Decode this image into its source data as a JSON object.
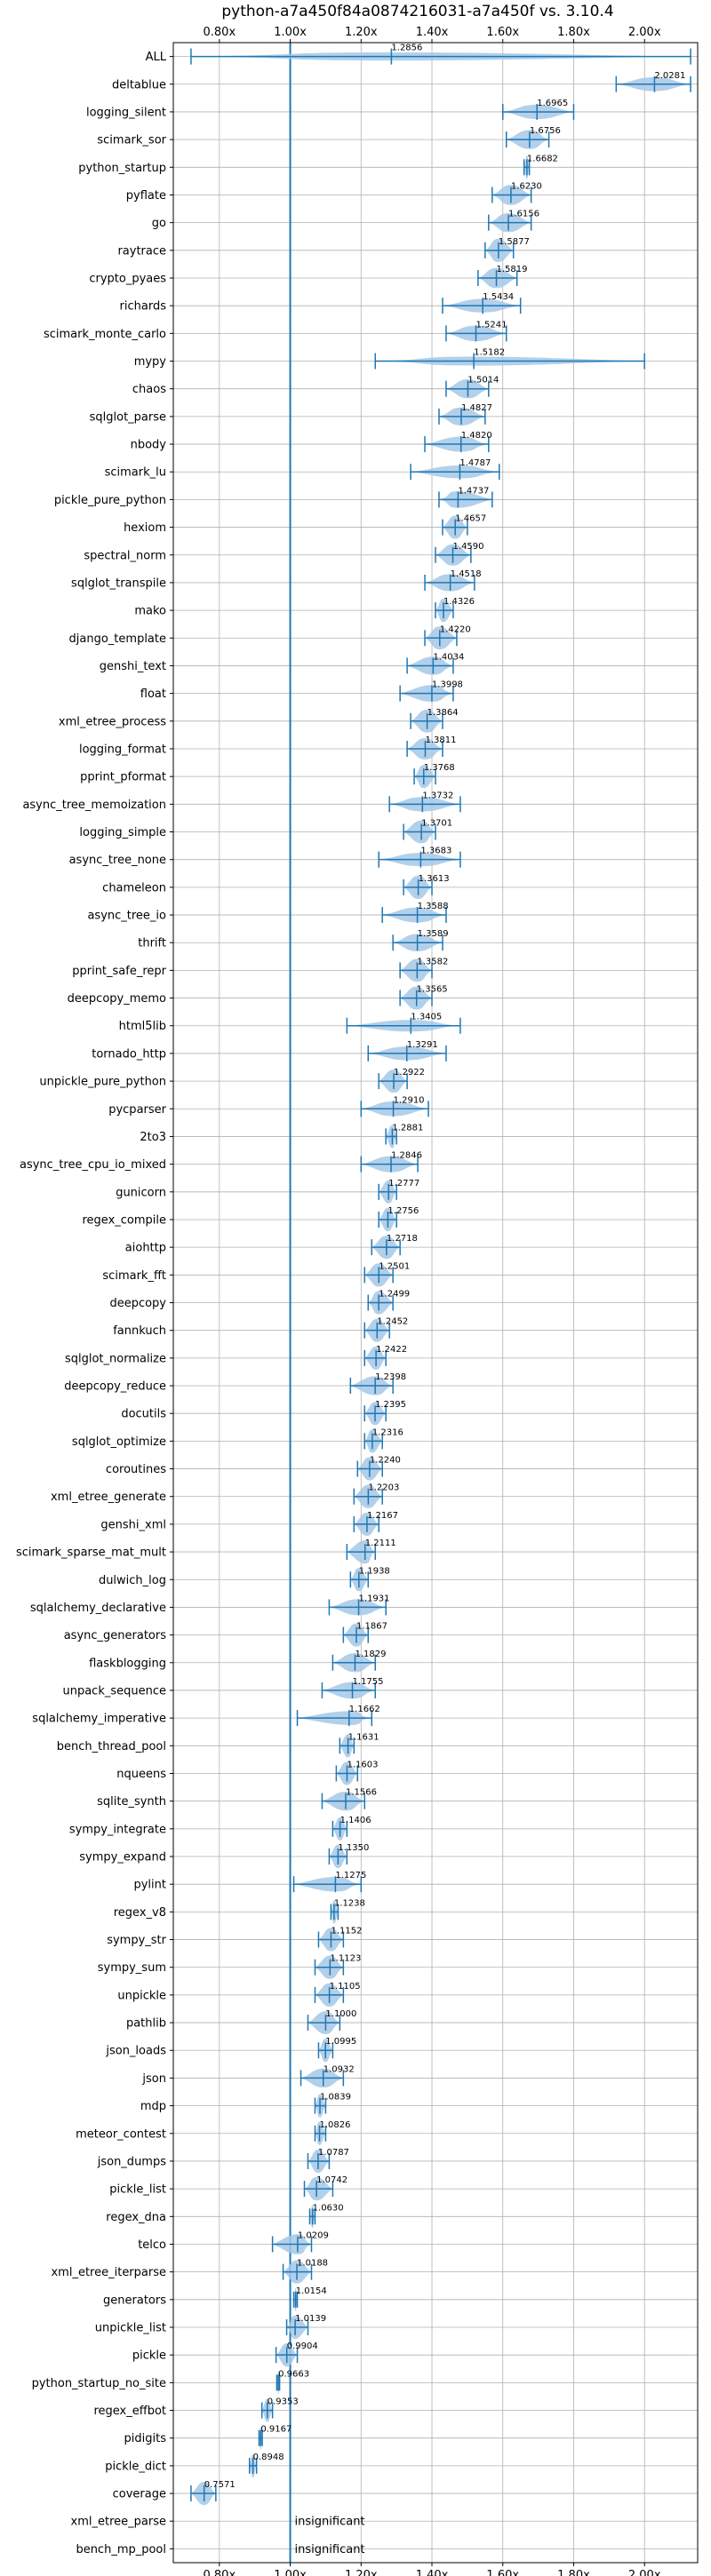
{
  "chart_data": {
    "type": "violin",
    "title": "python-a7a450f84a0874216031-a7a450f vs. 3.10.4",
    "xticks": [
      "0.80x",
      "1.00x",
      "1.20x",
      "1.40x",
      "1.60x",
      "1.80x",
      "2.00x"
    ],
    "xtick_values": [
      0.8,
      1.0,
      1.2,
      1.4,
      1.6,
      1.8,
      2.0
    ],
    "xlim": [
      0.67,
      2.15
    ],
    "reference_line": 1.0,
    "grid": true,
    "color": "#1f77b4",
    "fill_color": "#a6c8e6",
    "benchmarks": [
      {
        "name": "ALL",
        "value": 1.2856,
        "label": "1.2856",
        "min": 0.72,
        "max": 2.13
      },
      {
        "name": "deltablue",
        "value": 2.0281,
        "label": "2.0281",
        "min": 1.92,
        "max": 2.13
      },
      {
        "name": "logging_silent",
        "value": 1.6965,
        "label": "1.6965",
        "min": 1.6,
        "max": 1.8
      },
      {
        "name": "scimark_sor",
        "value": 1.6756,
        "label": "1.6756",
        "min": 1.61,
        "max": 1.73
      },
      {
        "name": "python_startup",
        "value": 1.6682,
        "label": "1.6682",
        "min": 1.66,
        "max": 1.675
      },
      {
        "name": "pyflate",
        "value": 1.623,
        "label": "1.6230",
        "min": 1.57,
        "max": 1.68
      },
      {
        "name": "go",
        "value": 1.6156,
        "label": "1.6156",
        "min": 1.56,
        "max": 1.68
      },
      {
        "name": "raytrace",
        "value": 1.5877,
        "label": "1.5877",
        "min": 1.55,
        "max": 1.63
      },
      {
        "name": "crypto_pyaes",
        "value": 1.5819,
        "label": "1.5819",
        "min": 1.53,
        "max": 1.64
      },
      {
        "name": "richards",
        "value": 1.5434,
        "label": "1.5434",
        "min": 1.43,
        "max": 1.65
      },
      {
        "name": "scimark_monte_carlo",
        "value": 1.5241,
        "label": "1.5241",
        "min": 1.44,
        "max": 1.61
      },
      {
        "name": "mypy",
        "value": 1.5182,
        "label": "1.5182",
        "min": 1.24,
        "max": 2.0
      },
      {
        "name": "chaos",
        "value": 1.5014,
        "label": "1.5014",
        "min": 1.44,
        "max": 1.56
      },
      {
        "name": "sqlglot_parse",
        "value": 1.4827,
        "label": "1.4827",
        "min": 1.42,
        "max": 1.55
      },
      {
        "name": "nbody",
        "value": 1.482,
        "label": "1.4820",
        "min": 1.38,
        "max": 1.56
      },
      {
        "name": "scimark_lu",
        "value": 1.4787,
        "label": "1.4787",
        "min": 1.34,
        "max": 1.59
      },
      {
        "name": "pickle_pure_python",
        "value": 1.4737,
        "label": "1.4737",
        "min": 1.42,
        "max": 1.57
      },
      {
        "name": "hexiom",
        "value": 1.4657,
        "label": "1.4657",
        "min": 1.43,
        "max": 1.5
      },
      {
        "name": "spectral_norm",
        "value": 1.459,
        "label": "1.4590",
        "min": 1.41,
        "max": 1.51
      },
      {
        "name": "sqlglot_transpile",
        "value": 1.4518,
        "label": "1.4518",
        "min": 1.38,
        "max": 1.52
      },
      {
        "name": "mako",
        "value": 1.4326,
        "label": "1.4326",
        "min": 1.41,
        "max": 1.46
      },
      {
        "name": "django_template",
        "value": 1.422,
        "label": "1.4220",
        "min": 1.38,
        "max": 1.47
      },
      {
        "name": "genshi_text",
        "value": 1.4034,
        "label": "1.4034",
        "min": 1.33,
        "max": 1.46
      },
      {
        "name": "float",
        "value": 1.3998,
        "label": "1.3998",
        "min": 1.31,
        "max": 1.46
      },
      {
        "name": "xml_etree_process",
        "value": 1.3864,
        "label": "1.3864",
        "min": 1.34,
        "max": 1.43
      },
      {
        "name": "logging_format",
        "value": 1.3811,
        "label": "1.3811",
        "min": 1.33,
        "max": 1.43
      },
      {
        "name": "pprint_pformat",
        "value": 1.3768,
        "label": "1.3768",
        "min": 1.35,
        "max": 1.41
      },
      {
        "name": "async_tree_memoization",
        "value": 1.3732,
        "label": "1.3732",
        "min": 1.28,
        "max": 1.48
      },
      {
        "name": "logging_simple",
        "value": 1.3701,
        "label": "1.3701",
        "min": 1.32,
        "max": 1.41
      },
      {
        "name": "async_tree_none",
        "value": 1.3683,
        "label": "1.3683",
        "min": 1.25,
        "max": 1.48
      },
      {
        "name": "chameleon",
        "value": 1.3613,
        "label": "1.3613",
        "min": 1.32,
        "max": 1.4
      },
      {
        "name": "async_tree_io",
        "value": 1.3588,
        "label": "1.3588",
        "min": 1.26,
        "max": 1.44
      },
      {
        "name": "thrift",
        "value": 1.3589,
        "label": "1.3589",
        "min": 1.29,
        "max": 1.43
      },
      {
        "name": "pprint_safe_repr",
        "value": 1.3582,
        "label": "1.3582",
        "min": 1.31,
        "max": 1.4
      },
      {
        "name": "deepcopy_memo",
        "value": 1.3565,
        "label": "1.3565",
        "min": 1.31,
        "max": 1.4
      },
      {
        "name": "html5lib",
        "value": 1.3405,
        "label": "1.3405",
        "min": 1.16,
        "max": 1.48
      },
      {
        "name": "tornado_http",
        "value": 1.3291,
        "label": "1.3291",
        "min": 1.22,
        "max": 1.44
      },
      {
        "name": "unpickle_pure_python",
        "value": 1.2922,
        "label": "1.2922",
        "min": 1.25,
        "max": 1.33
      },
      {
        "name": "pycparser",
        "value": 1.291,
        "label": "1.2910",
        "min": 1.2,
        "max": 1.39
      },
      {
        "name": "2to3",
        "value": 1.2881,
        "label": "1.2881",
        "min": 1.27,
        "max": 1.3
      },
      {
        "name": "async_tree_cpu_io_mixed",
        "value": 1.2846,
        "label": "1.2846",
        "min": 1.2,
        "max": 1.36
      },
      {
        "name": "gunicorn",
        "value": 1.2777,
        "label": "1.2777",
        "min": 1.25,
        "max": 1.3
      },
      {
        "name": "regex_compile",
        "value": 1.2756,
        "label": "1.2756",
        "min": 1.25,
        "max": 1.3
      },
      {
        "name": "aiohttp",
        "value": 1.2718,
        "label": "1.2718",
        "min": 1.23,
        "max": 1.31
      },
      {
        "name": "scimark_fft",
        "value": 1.2501,
        "label": "1.2501",
        "min": 1.21,
        "max": 1.29
      },
      {
        "name": "deepcopy",
        "value": 1.2499,
        "label": "1.2499",
        "min": 1.22,
        "max": 1.29
      },
      {
        "name": "fannkuch",
        "value": 1.2452,
        "label": "1.2452",
        "min": 1.21,
        "max": 1.28
      },
      {
        "name": "sqlglot_normalize",
        "value": 1.2422,
        "label": "1.2422",
        "min": 1.21,
        "max": 1.27
      },
      {
        "name": "deepcopy_reduce",
        "value": 1.2398,
        "label": "1.2398",
        "min": 1.17,
        "max": 1.29
      },
      {
        "name": "docutils",
        "value": 1.2395,
        "label": "1.2395",
        "min": 1.21,
        "max": 1.27
      },
      {
        "name": "sqlglot_optimize",
        "value": 1.2316,
        "label": "1.2316",
        "min": 1.21,
        "max": 1.26
      },
      {
        "name": "coroutines",
        "value": 1.224,
        "label": "1.2240",
        "min": 1.19,
        "max": 1.26
      },
      {
        "name": "xml_etree_generate",
        "value": 1.2203,
        "label": "1.2203",
        "min": 1.18,
        "max": 1.26
      },
      {
        "name": "genshi_xml",
        "value": 1.2167,
        "label": "1.2167",
        "min": 1.18,
        "max": 1.25
      },
      {
        "name": "scimark_sparse_mat_mult",
        "value": 1.2111,
        "label": "1.2111",
        "min": 1.16,
        "max": 1.24
      },
      {
        "name": "dulwich_log",
        "value": 1.1938,
        "label": "1.1938",
        "min": 1.17,
        "max": 1.22
      },
      {
        "name": "sqlalchemy_declarative",
        "value": 1.1931,
        "label": "1.1931",
        "min": 1.11,
        "max": 1.27
      },
      {
        "name": "async_generators",
        "value": 1.1867,
        "label": "1.1867",
        "min": 1.15,
        "max": 1.22
      },
      {
        "name": "flaskblogging",
        "value": 1.1829,
        "label": "1.1829",
        "min": 1.12,
        "max": 1.24
      },
      {
        "name": "unpack_sequence",
        "value": 1.1755,
        "label": "1.1755",
        "min": 1.09,
        "max": 1.24
      },
      {
        "name": "sqlalchemy_imperative",
        "value": 1.1662,
        "label": "1.1662",
        "min": 1.02,
        "max": 1.23
      },
      {
        "name": "bench_thread_pool",
        "value": 1.1631,
        "label": "1.1631",
        "min": 1.14,
        "max": 1.18
      },
      {
        "name": "nqueens",
        "value": 1.1603,
        "label": "1.1603",
        "min": 1.13,
        "max": 1.19
      },
      {
        "name": "sqlite_synth",
        "value": 1.1566,
        "label": "1.1566",
        "min": 1.09,
        "max": 1.21
      },
      {
        "name": "sympy_integrate",
        "value": 1.1406,
        "label": "1.1406",
        "min": 1.12,
        "max": 1.16
      },
      {
        "name": "sympy_expand",
        "value": 1.135,
        "label": "1.1350",
        "min": 1.11,
        "max": 1.16
      },
      {
        "name": "pylint",
        "value": 1.1275,
        "label": "1.1275",
        "min": 1.01,
        "max": 1.2
      },
      {
        "name": "regex_v8",
        "value": 1.1238,
        "label": "1.1238",
        "min": 1.115,
        "max": 1.135
      },
      {
        "name": "sympy_str",
        "value": 1.1152,
        "label": "1.1152",
        "min": 1.08,
        "max": 1.15
      },
      {
        "name": "sympy_sum",
        "value": 1.1123,
        "label": "1.1123",
        "min": 1.07,
        "max": 1.15
      },
      {
        "name": "unpickle",
        "value": 1.1105,
        "label": "1.1105",
        "min": 1.07,
        "max": 1.15
      },
      {
        "name": "pathlib",
        "value": 1.1,
        "label": "1.1000",
        "min": 1.05,
        "max": 1.14
      },
      {
        "name": "json_loads",
        "value": 1.0995,
        "label": "1.0995",
        "min": 1.08,
        "max": 1.12
      },
      {
        "name": "json",
        "value": 1.0932,
        "label": "1.0932",
        "min": 1.03,
        "max": 1.15
      },
      {
        "name": "mdp",
        "value": 1.0839,
        "label": "1.0839",
        "min": 1.07,
        "max": 1.1
      },
      {
        "name": "meteor_contest",
        "value": 1.0826,
        "label": "1.0826",
        "min": 1.07,
        "max": 1.1
      },
      {
        "name": "json_dumps",
        "value": 1.0787,
        "label": "1.0787",
        "min": 1.05,
        "max": 1.11
      },
      {
        "name": "pickle_list",
        "value": 1.0742,
        "label": "1.0742",
        "min": 1.04,
        "max": 1.12
      },
      {
        "name": "regex_dna",
        "value": 1.063,
        "label": "1.0630",
        "min": 1.055,
        "max": 1.07
      },
      {
        "name": "telco",
        "value": 1.0209,
        "label": "1.0209",
        "min": 0.95,
        "max": 1.06
      },
      {
        "name": "xml_etree_iterparse",
        "value": 1.0188,
        "label": "1.0188",
        "min": 0.98,
        "max": 1.06
      },
      {
        "name": "generators",
        "value": 1.0154,
        "label": "1.0154",
        "min": 1.01,
        "max": 1.02
      },
      {
        "name": "unpickle_list",
        "value": 1.0139,
        "label": "1.0139",
        "min": 0.99,
        "max": 1.05
      },
      {
        "name": "pickle",
        "value": 0.9904,
        "label": "0.9904",
        "min": 0.96,
        "max": 1.02
      },
      {
        "name": "python_startup_no_site",
        "value": 0.9663,
        "label": "0.9663",
        "min": 0.962,
        "max": 0.97
      },
      {
        "name": "regex_effbot",
        "value": 0.9353,
        "label": "0.9353",
        "min": 0.92,
        "max": 0.95
      },
      {
        "name": "pidigits",
        "value": 0.9167,
        "label": "0.9167",
        "min": 0.912,
        "max": 0.921
      },
      {
        "name": "pickle_dict",
        "value": 0.8948,
        "label": "0.8948",
        "min": 0.885,
        "max": 0.905
      },
      {
        "name": "coverage",
        "value": 0.7571,
        "label": "0.7571",
        "min": 0.72,
        "max": 0.79
      },
      {
        "name": "xml_etree_parse",
        "insignificant": true,
        "label": "insignificant"
      },
      {
        "name": "bench_mp_pool",
        "insignificant": true,
        "label": "insignificant"
      }
    ]
  }
}
